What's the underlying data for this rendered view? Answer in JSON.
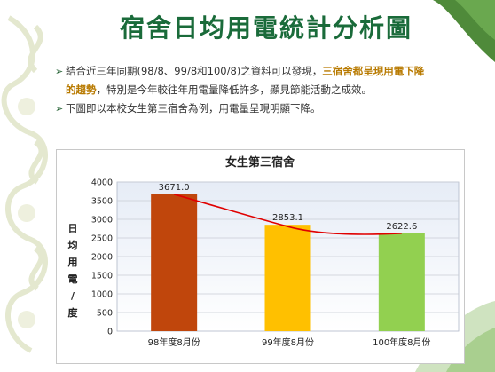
{
  "slide": {
    "title": "宿舍日均用電統計分析圖",
    "bullet1_a": "結合近三年同期(98/8、99/8和100/8)之資料可以發現，",
    "bullet1_hl": "三宿舍都呈現用電下降的趨勢",
    "bullet1_b": "，特別是今年較往年用電量降低許多，顯見節能活動之成效。",
    "bullet2": "下圖即以本校女生第三宿舍為例，用電量呈現明顯下降。"
  },
  "chart_data": {
    "type": "bar",
    "title": "女生第三宿舍",
    "ylabel_chars": [
      "日",
      "均",
      "用",
      "電",
      "/",
      "度"
    ],
    "categories": [
      "98年度8月份",
      "99年度8月份",
      "100年度8月份"
    ],
    "values": [
      3671.0,
      2853.1,
      2622.6
    ],
    "value_labels": [
      "3671.0",
      "2853.1",
      "2622.6"
    ],
    "bar_colors": [
      "#c0460c",
      "#ffc000",
      "#92d050"
    ],
    "trendline_color": "#e00000",
    "ylim": [
      0,
      4000
    ],
    "yticks": [
      0,
      500,
      1000,
      1500,
      2000,
      2500,
      3000,
      3500,
      4000
    ],
    "grid": true,
    "legend": "none"
  }
}
